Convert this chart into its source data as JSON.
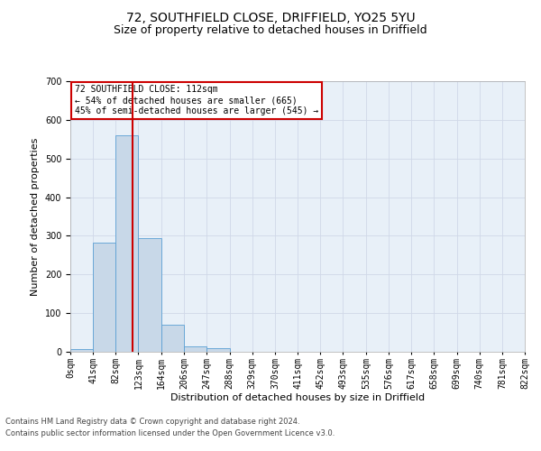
{
  "title_line1": "72, SOUTHFIELD CLOSE, DRIFFIELD, YO25 5YU",
  "title_line2": "Size of property relative to detached houses in Driffield",
  "xlabel": "Distribution of detached houses by size in Driffield",
  "ylabel": "Number of detached properties",
  "footer_line1": "Contains HM Land Registry data © Crown copyright and database right 2024.",
  "footer_line2": "Contains public sector information licensed under the Open Government Licence v3.0.",
  "bin_edges": [
    0,
    41,
    82,
    123,
    164,
    206,
    247,
    288,
    329,
    370,
    411,
    452,
    493,
    535,
    576,
    617,
    658,
    699,
    740,
    781,
    822
  ],
  "bar_heights": [
    8,
    283,
    560,
    293,
    69,
    14,
    10,
    0,
    0,
    0,
    0,
    0,
    0,
    0,
    0,
    0,
    0,
    0,
    0,
    0
  ],
  "bar_color": "#c8d8e8",
  "bar_edge_color": "#5a9fd4",
  "property_size": 112,
  "red_line_color": "#cc0000",
  "annotation_text_line1": "72 SOUTHFIELD CLOSE: 112sqm",
  "annotation_text_line2": "← 54% of detached houses are smaller (665)",
  "annotation_text_line3": "45% of semi-detached houses are larger (545) →",
  "annotation_box_color": "#ffffff",
  "annotation_box_edge_color": "#cc0000",
  "ylim": [
    0,
    700
  ],
  "yticks": [
    0,
    100,
    200,
    300,
    400,
    500,
    600,
    700
  ],
  "grid_color": "#d0d8e8",
  "bg_color": "#e8f0f8",
  "title_fontsize": 10,
  "subtitle_fontsize": 9,
  "xlabel_fontsize": 8,
  "ylabel_fontsize": 8,
  "tick_fontsize": 7,
  "annotation_fontsize": 7,
  "footer_fontsize": 6
}
